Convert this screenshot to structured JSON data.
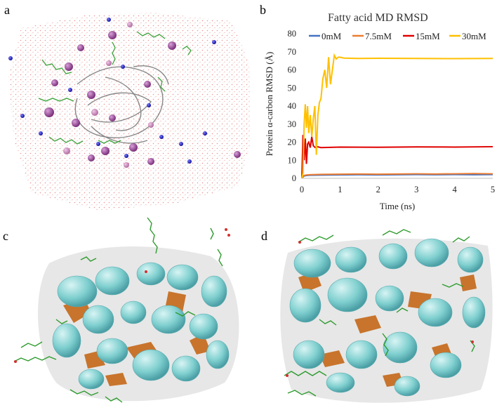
{
  "panels": {
    "a": {
      "letter": "a",
      "image": "protein in water box with fatty acids and ions"
    },
    "b": {
      "letter": "b"
    },
    "c": {
      "letter": "c",
      "image": "protein surface with bound fatty acids"
    },
    "d": {
      "letter": "d",
      "image": "protein surface with bound fatty acids (alternate view)"
    }
  },
  "chart_data": {
    "type": "line",
    "title": "Fatty acid MD RMSD",
    "xlabel": "Time (ns)",
    "ylabel": "Protein α-carbon RMSD (Å)",
    "xlim": [
      0,
      5
    ],
    "ylim": [
      0,
      80
    ],
    "xticks": [
      0,
      1,
      2,
      3,
      4,
      5
    ],
    "yticks": [
      0,
      10,
      20,
      30,
      40,
      50,
      60,
      70,
      80
    ],
    "grid": false,
    "legend_position": "top",
    "series": [
      {
        "name": "0mM",
        "color": "#4472c4",
        "x": [
          0,
          0.05,
          0.1,
          0.2,
          0.5,
          1,
          1.5,
          2,
          2.5,
          3,
          3.5,
          4,
          4.5,
          5
        ],
        "y": [
          0,
          1.2,
          1.5,
          1.7,
          1.8,
          1.9,
          2.0,
          1.9,
          2.0,
          2.1,
          2.0,
          2.1,
          2.0,
          2.1
        ]
      },
      {
        "name": "7.5mM",
        "color": "#ed7d31",
        "x": [
          0,
          0.05,
          0.1,
          0.2,
          0.5,
          1,
          1.5,
          2,
          2.5,
          3,
          3.5,
          4,
          4.5,
          5
        ],
        "y": [
          0,
          1.5,
          1.8,
          2.0,
          2.2,
          2.3,
          2.4,
          2.3,
          2.4,
          2.5,
          2.4,
          2.5,
          2.6,
          2.5
        ]
      },
      {
        "name": "15mM",
        "color": "#e00000",
        "x": [
          0,
          0.03,
          0.06,
          0.09,
          0.12,
          0.15,
          0.18,
          0.22,
          0.26,
          0.3,
          0.35,
          0.4,
          0.5,
          1,
          2,
          3,
          4,
          5
        ],
        "y": [
          0,
          24,
          10,
          22,
          8,
          19,
          20,
          17,
          23,
          18,
          17,
          17.5,
          17,
          17.3,
          17.2,
          17.4,
          17.3,
          17.5
        ]
      },
      {
        "name": "30mM",
        "color": "#ffc000",
        "x": [
          0,
          0.03,
          0.06,
          0.09,
          0.12,
          0.15,
          0.18,
          0.22,
          0.26,
          0.3,
          0.34,
          0.38,
          0.42,
          0.46,
          0.5,
          0.55,
          0.6,
          0.65,
          0.7,
          0.75,
          0.8,
          0.85,
          0.9,
          0.95,
          1.0,
          1.1,
          1.5,
          2,
          3,
          4,
          5
        ],
        "y": [
          0,
          3,
          30,
          41,
          28,
          40,
          25,
          35,
          23,
          33,
          40,
          13,
          35,
          42,
          44,
          55,
          60,
          50,
          67,
          52,
          60,
          68,
          66,
          67,
          67,
          66.5,
          66.3,
          66.4,
          66.3,
          66.2,
          66.3
        ]
      }
    ]
  }
}
